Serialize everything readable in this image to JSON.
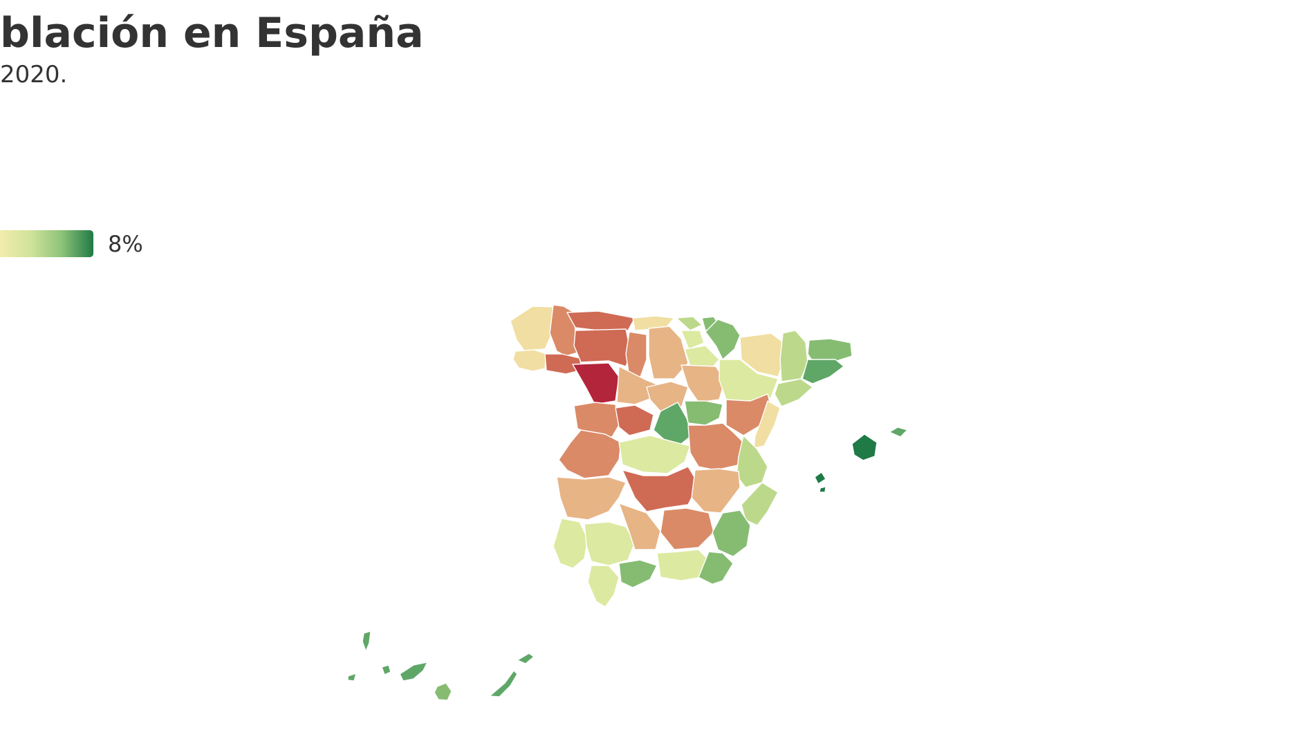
{
  "header": {
    "title": "blación en España",
    "subtitle": "2020."
  },
  "legend": {
    "max_label": "8%",
    "gradient_colors": [
      "#f3ecad",
      "#cfe39a",
      "#8cc278",
      "#1f7a45"
    ]
  },
  "colors": {
    "dark_red": "#b3253b",
    "red": "#cf6a55",
    "orange": "#da8a67",
    "light_orange": "#e7b486",
    "pale_yellow": "#f1dea2",
    "yellow_green": "#dce9a0",
    "light_green": "#bcd98b",
    "green": "#86bc72",
    "mid_green": "#5fa767",
    "dark_green": "#1f7a45"
  },
  "map": {
    "regions": [
      {
        "name": "A Coruña",
        "color": "pale_yellow"
      },
      {
        "name": "Lugo",
        "color": "orange"
      },
      {
        "name": "Pontevedra",
        "color": "pale_yellow"
      },
      {
        "name": "Ourense",
        "color": "red"
      },
      {
        "name": "Asturias",
        "color": "red"
      },
      {
        "name": "León",
        "color": "red"
      },
      {
        "name": "Zamora",
        "color": "dark_red"
      },
      {
        "name": "Cantabria",
        "color": "pale_yellow"
      },
      {
        "name": "Palencia",
        "color": "orange"
      },
      {
        "name": "Burgos",
        "color": "light_orange"
      },
      {
        "name": "Valladolid",
        "color": "light_orange"
      },
      {
        "name": "Bizkaia",
        "color": "light_green"
      },
      {
        "name": "Gipuzkoa",
        "color": "green"
      },
      {
        "name": "Araba/Álava",
        "color": "yellow_green"
      },
      {
        "name": "Navarra",
        "color": "green"
      },
      {
        "name": "La Rioja",
        "color": "yellow_green"
      },
      {
        "name": "Soria",
        "color": "light_orange"
      },
      {
        "name": "Segovia",
        "color": "light_orange"
      },
      {
        "name": "Huesca",
        "color": "pale_yellow"
      },
      {
        "name": "Zaragoza",
        "color": "yellow_green"
      },
      {
        "name": "Lleida",
        "color": "light_green"
      },
      {
        "name": "Girona",
        "color": "green"
      },
      {
        "name": "Barcelona",
        "color": "mid_green"
      },
      {
        "name": "Tarragona",
        "color": "light_green"
      },
      {
        "name": "Teruel",
        "color": "orange"
      },
      {
        "name": "Castellón",
        "color": "pale_yellow"
      },
      {
        "name": "Guadalajara",
        "color": "green"
      },
      {
        "name": "Madrid",
        "color": "mid_green"
      },
      {
        "name": "Salamanca",
        "color": "orange"
      },
      {
        "name": "Ávila",
        "color": "red"
      },
      {
        "name": "Cáceres",
        "color": "orange"
      },
      {
        "name": "Toledo",
        "color": "yellow_green"
      },
      {
        "name": "Cuenca",
        "color": "orange"
      },
      {
        "name": "Valencia",
        "color": "light_green"
      },
      {
        "name": "Badajoz",
        "color": "light_orange"
      },
      {
        "name": "Ciudad Real",
        "color": "red"
      },
      {
        "name": "Albacete",
        "color": "light_orange"
      },
      {
        "name": "Alicante",
        "color": "light_green"
      },
      {
        "name": "Huelva",
        "color": "yellow_green"
      },
      {
        "name": "Sevilla",
        "color": "yellow_green"
      },
      {
        "name": "Córdoba",
        "color": "light_orange"
      },
      {
        "name": "Jaén",
        "color": "orange"
      },
      {
        "name": "Murcia",
        "color": "green"
      },
      {
        "name": "Cádiz",
        "color": "yellow_green"
      },
      {
        "name": "Málaga",
        "color": "green"
      },
      {
        "name": "Granada",
        "color": "yellow_green"
      },
      {
        "name": "Almería",
        "color": "green"
      },
      {
        "name": "Mallorca",
        "color": "dark_green"
      },
      {
        "name": "Menorca",
        "color": "mid_green"
      },
      {
        "name": "Ibiza",
        "color": "dark_green"
      },
      {
        "name": "Formentera",
        "color": "dark_green"
      },
      {
        "name": "La Palma",
        "color": "mid_green"
      },
      {
        "name": "El Hierro",
        "color": "mid_green"
      },
      {
        "name": "La Gomera",
        "color": "mid_green"
      },
      {
        "name": "Tenerife",
        "color": "mid_green"
      },
      {
        "name": "Gran Canaria",
        "color": "green"
      },
      {
        "name": "Fuerteventura",
        "color": "mid_green"
      },
      {
        "name": "Lanzarote",
        "color": "mid_green"
      }
    ]
  }
}
